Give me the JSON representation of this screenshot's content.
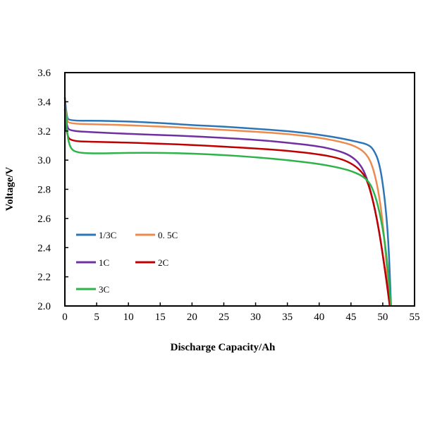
{
  "chart_data": {
    "type": "line",
    "title": "",
    "xlabel": "Discharge Capacity/Ah",
    "ylabel": "Voltage/V",
    "xlim": [
      0,
      55
    ],
    "ylim": [
      2.0,
      3.6
    ],
    "xticks": [
      "0",
      "5",
      "10",
      "15",
      "20",
      "25",
      "30",
      "35",
      "40",
      "45",
      "50",
      "55"
    ],
    "yticks": [
      "2.0",
      "2.2",
      "2.4",
      "2.6",
      "2.8",
      "3.0",
      "3.2",
      "3.4",
      "3.6"
    ],
    "grid": false,
    "legend_position": "left-inside",
    "series": [
      {
        "name": "1/3C",
        "color": "#2e75b6",
        "points": [
          [
            0,
            3.43
          ],
          [
            0.3,
            3.3
          ],
          [
            0.6,
            3.27
          ],
          [
            5,
            3.27
          ],
          [
            10,
            3.265
          ],
          [
            15,
            3.255
          ],
          [
            20,
            3.24
          ],
          [
            25,
            3.23
          ],
          [
            30,
            3.215
          ],
          [
            35,
            3.2
          ],
          [
            40,
            3.175
          ],
          [
            44,
            3.145
          ],
          [
            46,
            3.125
          ],
          [
            47.5,
            3.11
          ],
          [
            48.5,
            3.08
          ],
          [
            49.5,
            2.98
          ],
          [
            50.3,
            2.75
          ],
          [
            50.9,
            2.45
          ],
          [
            51.3,
            2.0
          ]
        ]
      },
      {
        "name": "0. 5C",
        "color": "#ed8b4f",
        "points": [
          [
            0,
            3.4
          ],
          [
            0.3,
            3.28
          ],
          [
            0.6,
            3.25
          ],
          [
            5,
            3.245
          ],
          [
            10,
            3.24
          ],
          [
            20,
            3.22
          ],
          [
            30,
            3.195
          ],
          [
            35,
            3.18
          ],
          [
            40,
            3.155
          ],
          [
            44,
            3.12
          ],
          [
            46,
            3.09
          ],
          [
            47.5,
            3.04
          ],
          [
            48.5,
            2.95
          ],
          [
            49.5,
            2.75
          ],
          [
            50.3,
            2.45
          ],
          [
            51.1,
            2.0
          ]
        ]
      },
      {
        "name": "1C",
        "color": "#7030a0",
        "points": [
          [
            0,
            3.38
          ],
          [
            0.3,
            3.23
          ],
          [
            0.8,
            3.2
          ],
          [
            5,
            3.19
          ],
          [
            10,
            3.18
          ],
          [
            20,
            3.165
          ],
          [
            30,
            3.14
          ],
          [
            35,
            3.12
          ],
          [
            40,
            3.095
          ],
          [
            43,
            3.065
          ],
          [
            45,
            3.03
          ],
          [
            46.5,
            2.97
          ],
          [
            47.5,
            2.88
          ],
          [
            48.5,
            2.72
          ],
          [
            49.5,
            2.5
          ],
          [
            50.5,
            2.2
          ],
          [
            51.2,
            2.0
          ]
        ]
      },
      {
        "name": "2C",
        "color": "#c00000",
        "points": [
          [
            0,
            3.35
          ],
          [
            0.3,
            3.17
          ],
          [
            1,
            3.13
          ],
          [
            5,
            3.125
          ],
          [
            10,
            3.12
          ],
          [
            20,
            3.105
          ],
          [
            30,
            3.08
          ],
          [
            35,
            3.065
          ],
          [
            40,
            3.04
          ],
          [
            43,
            3.015
          ],
          [
            45,
            2.98
          ],
          [
            46.5,
            2.93
          ],
          [
            47.5,
            2.87
          ],
          [
            48.5,
            2.72
          ],
          [
            49.5,
            2.5
          ],
          [
            50.5,
            2.2
          ],
          [
            51.1,
            2.0
          ]
        ]
      },
      {
        "name": "3C",
        "color": "#2db34a",
        "points": [
          [
            0,
            3.43
          ],
          [
            0.3,
            3.2
          ],
          [
            0.8,
            3.08
          ],
          [
            2,
            3.05
          ],
          [
            5,
            3.045
          ],
          [
            10,
            3.05
          ],
          [
            15,
            3.05
          ],
          [
            20,
            3.045
          ],
          [
            25,
            3.035
          ],
          [
            30,
            3.02
          ],
          [
            35,
            3.0
          ],
          [
            40,
            2.975
          ],
          [
            44,
            2.94
          ],
          [
            46,
            2.91
          ],
          [
            47.5,
            2.87
          ],
          [
            48.5,
            2.8
          ],
          [
            49.5,
            2.65
          ],
          [
            50.5,
            2.4
          ],
          [
            51.3,
            2.0
          ]
        ]
      }
    ]
  }
}
